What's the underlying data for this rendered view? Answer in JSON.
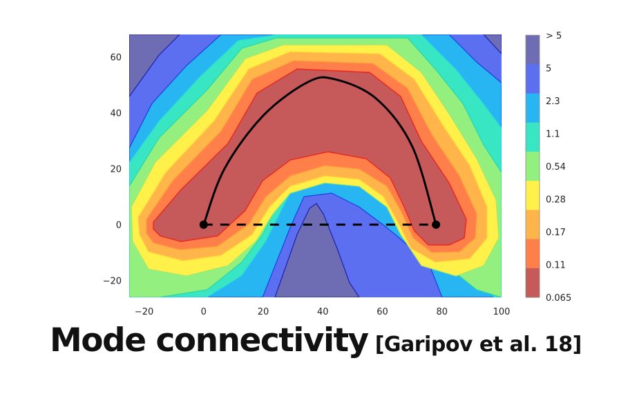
{
  "chart_data": {
    "type": "contour",
    "xlim": [
      -25,
      100
    ],
    "ylim": [
      -26,
      68
    ],
    "x_ticks": [
      "−20",
      "0",
      "20",
      "40",
      "60",
      "80",
      "100"
    ],
    "x_tick_values": [
      -20,
      0,
      20,
      40,
      60,
      80,
      100
    ],
    "y_ticks": [
      "60",
      "40",
      "20",
      "0",
      "−20"
    ],
    "y_tick_values": [
      60,
      40,
      20,
      0,
      -20
    ],
    "colorbar": {
      "labels": [
        "> 5",
        "5",
        "2.3",
        "1.1",
        "0.54",
        "0.28",
        "0.17",
        "0.11",
        "0.065"
      ],
      "colors": [
        "#6e6db4",
        "#5b6ff0",
        "#28b6f2",
        "#39e6c4",
        "#93f07f",
        "#fff14a",
        "#ffb54a",
        "#ff7f4a",
        "#c65a5a"
      ]
    },
    "endpoints": [
      {
        "x": 0,
        "y": 0
      },
      {
        "x": 78,
        "y": 0
      }
    ],
    "curve_path": [
      {
        "x": 0,
        "y": 0
      },
      {
        "x": 7,
        "y": 20
      },
      {
        "x": 20,
        "y": 39
      },
      {
        "x": 35,
        "y": 51
      },
      {
        "x": 44,
        "y": 52
      },
      {
        "x": 58,
        "y": 45
      },
      {
        "x": 70,
        "y": 28
      },
      {
        "x": 78,
        "y": 0
      }
    ],
    "line_path": [
      {
        "x": 0,
        "y": 0
      },
      {
        "x": 78,
        "y": 0
      }
    ]
  },
  "caption": {
    "title": "Mode connectivity",
    "citation": "[Garipov et al. 18]"
  }
}
